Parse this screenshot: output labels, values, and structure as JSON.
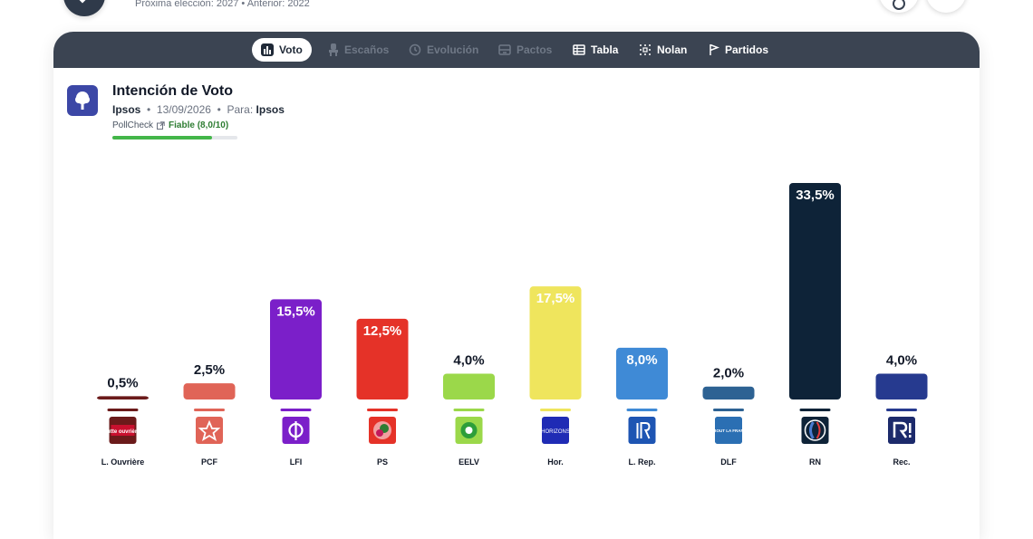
{
  "header": {
    "subtitle": "Próxima elección: 2027 • Anterior: 2022"
  },
  "tabs": [
    {
      "label": "Voto",
      "icon": "bar-chart-icon",
      "state": "active"
    },
    {
      "label": "Escaños",
      "icon": "seat-icon",
      "state": "disabled"
    },
    {
      "label": "Evolución",
      "icon": "history-icon",
      "state": "disabled"
    },
    {
      "label": "Pactos",
      "icon": "pacts-icon",
      "state": "disabled"
    },
    {
      "label": "Tabla",
      "icon": "table-icon",
      "state": "normal"
    },
    {
      "label": "Nolan",
      "icon": "nolan-grid-icon",
      "state": "normal"
    },
    {
      "label": "Partidos",
      "icon": "flag-icon",
      "state": "normal"
    }
  ],
  "poll": {
    "title": "Intención de Voto",
    "pollster": "Ipsos",
    "separator": "•",
    "date": "13/09/2026",
    "for_label": "Para:",
    "for_value": "Ipsos",
    "pollcheck_label": "PollCheck",
    "reliability": "Fiable (8,0/10)",
    "reliability_score": 8.0,
    "reliability_max": 10
  },
  "chart_data": {
    "type": "bar",
    "categories": [
      "L. Ouvrière",
      "PCF",
      "LFI",
      "PS",
      "EELV",
      "Hor.",
      "L. Rep.",
      "DLF",
      "RN",
      "Rec."
    ],
    "values": [
      0.5,
      2.5,
      15.5,
      12.5,
      4.0,
      17.5,
      8.0,
      2.0,
      33.5,
      4.0
    ],
    "value_labels": [
      "0,5%",
      "2,5%",
      "15,5%",
      "12,5%",
      "4,0%",
      "17,5%",
      "8,0%",
      "2,0%",
      "33,5%",
      "4,0%"
    ],
    "colors": [
      "#6b1a1a",
      "#e06457",
      "#7b1fc9",
      "#e53228",
      "#9bd84a",
      "#efe55d",
      "#3f8ad6",
      "#2d6293",
      "#0e2338",
      "#263a8f"
    ],
    "logo_icons": [
      "lutte-ouvriere-logo-icon",
      "pcf-star-logo-icon",
      "lfi-phi-logo-icon",
      "ps-rose-logo-icon",
      "eelv-logo-icon",
      "horizons-logo-icon",
      "les-republicains-logo-icon",
      "dlf-logo-icon",
      "rn-flame-logo-icon",
      "reconquete-logo-icon"
    ],
    "logo_texts": [
      "lutte ouvrière",
      "",
      "",
      "",
      "",
      "HORIZONS",
      "",
      "DEBOUT LA FRANCE",
      "",
      ""
    ],
    "title": "",
    "xlabel": "",
    "ylabel": "",
    "ylim": [
      0,
      33.5
    ],
    "grid": false,
    "legend": "none"
  }
}
